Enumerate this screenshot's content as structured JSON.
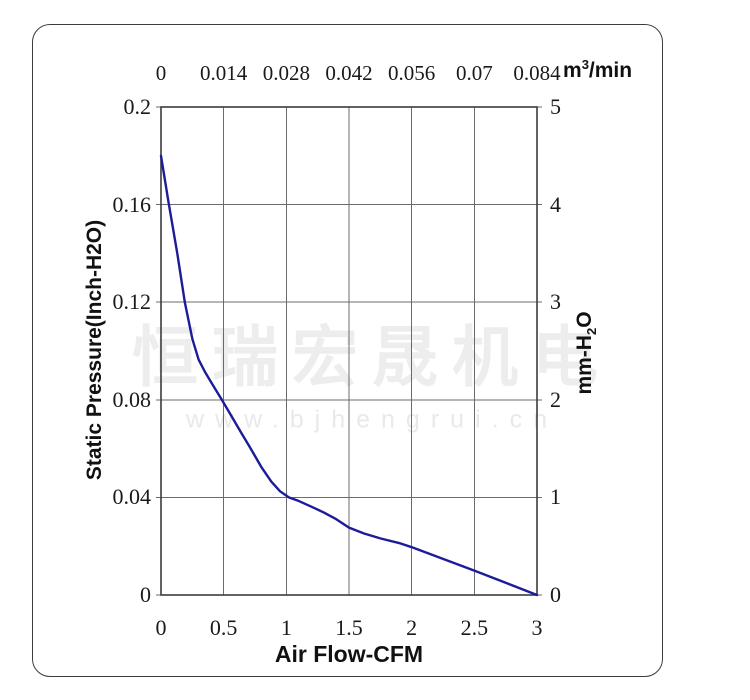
{
  "watermark": {
    "line1": "恒瑞宏晟机电",
    "line2": "www.bjhengrui.cn"
  },
  "colors": {
    "curve": "#1c1c9a",
    "grid": "#6b6b6b",
    "plot_border": "#3c3c3c",
    "frame_border": "#3c3c3c",
    "watermark": "#ededed"
  },
  "chart_data": {
    "type": "line",
    "title": "",
    "grid": true,
    "legend": "none",
    "x_axis_bottom": {
      "label": "Air Flow-CFM",
      "ticks": [
        "0",
        "0.5",
        "1",
        "1.5",
        "2",
        "2.5",
        "3"
      ],
      "range": [
        0,
        3
      ]
    },
    "x_axis_top": {
      "unit_base": "m",
      "unit_sup": "3",
      "unit_rest": "/min",
      "ticks": [
        "0",
        "0.014",
        "0.028",
        "0.042",
        "0.056",
        "0.07",
        "0.084"
      ],
      "range": [
        0,
        0.084
      ]
    },
    "y_axis_left": {
      "label": "Static Pressure(Inch-H2O)",
      "ticks": [
        "0.2",
        "0.16",
        "0.12",
        "0.08",
        "0.04",
        "0"
      ],
      "range": [
        0,
        0.2
      ]
    },
    "y_axis_right": {
      "unit_base": "mm-H",
      "unit_sub": "2",
      "unit_rest": "O",
      "ticks": [
        "5",
        "4",
        "3",
        "2",
        "1",
        "0"
      ],
      "range": [
        0,
        5
      ]
    },
    "series": [
      {
        "name": "static-pressure-vs-airflow",
        "color": "#1c1c9a",
        "points": [
          [
            0.0,
            0.18
          ],
          [
            0.06,
            0.161
          ],
          [
            0.13,
            0.14
          ],
          [
            0.19,
            0.12
          ],
          [
            0.25,
            0.105
          ],
          [
            0.3,
            0.0965
          ],
          [
            0.35,
            0.0915
          ],
          [
            0.42,
            0.0855
          ],
          [
            0.48,
            0.0805
          ],
          [
            0.56,
            0.0735
          ],
          [
            0.64,
            0.0665
          ],
          [
            0.71,
            0.0605
          ],
          [
            0.8,
            0.0525
          ],
          [
            0.88,
            0.0465
          ],
          [
            0.95,
            0.0425
          ],
          [
            1.02,
            0.04
          ],
          [
            1.1,
            0.0385
          ],
          [
            1.2,
            0.0362
          ],
          [
            1.3,
            0.0338
          ],
          [
            1.4,
            0.031
          ],
          [
            1.5,
            0.0276
          ],
          [
            1.62,
            0.0252
          ],
          [
            1.75,
            0.0232
          ],
          [
            1.9,
            0.0213
          ],
          [
            2.0,
            0.0196
          ],
          [
            2.25,
            0.0148
          ],
          [
            2.5,
            0.01
          ],
          [
            2.75,
            0.005
          ],
          [
            3.0,
            0.0
          ]
        ]
      }
    ]
  }
}
